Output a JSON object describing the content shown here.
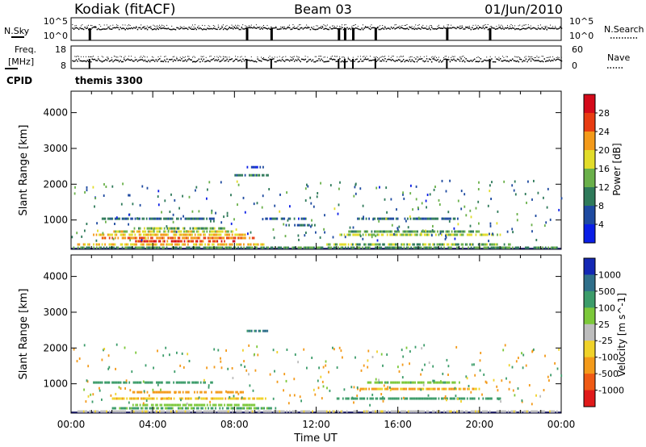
{
  "header": {
    "station": "Kodiak (fitACF)",
    "beam": "Beam 03",
    "date": "01/Jun/2010"
  },
  "top_panels": {
    "nsky_label": "N.Sky",
    "nsearch_label": "N.Search",
    "noise_ticks_left": [
      "10^5",
      "10^0"
    ],
    "noise_ticks_right": [
      "10^5",
      "10^0"
    ],
    "freq_label_1": "Freq.",
    "freq_label_2": "[MHz]",
    "freq_ticks": [
      "18",
      "8"
    ],
    "nave_label": "Nave",
    "nave_ticks": [
      "60",
      "0"
    ],
    "cpid_label": "CPID",
    "cpid_value": "themis 3300"
  },
  "chart_data": [
    {
      "type": "heatmap",
      "title": "",
      "ylabel": "Slant Range [km]",
      "xlabel": "",
      "xlim": [
        0,
        24
      ],
      "ylim": [
        180,
        4600
      ],
      "yticks": [
        "1000",
        "2000",
        "3000",
        "4000"
      ],
      "colorbar": {
        "label": "Power [dB]",
        "ticks": [
          "4",
          "8",
          "12",
          "16",
          "20",
          "24",
          "28"
        ],
        "colors": [
          "#0a1ee6",
          "#1e4aa0",
          "#2f7a5a",
          "#6ab04a",
          "#e2dc2a",
          "#f39a1a",
          "#e83c12",
          "#d40a1a"
        ]
      },
      "bands": [
        {
          "range_km": 225,
          "t0": 0.1,
          "t1": 23.8,
          "v": 12
        },
        {
          "range_km": 315,
          "t0": 0.3,
          "t1": 9.5,
          "v": 20
        },
        {
          "range_km": 315,
          "t0": 12.5,
          "t1": 21.5,
          "v": 14
        },
        {
          "range_km": 405,
          "t0": 3.0,
          "t1": 8.0,
          "v": 27
        },
        {
          "range_km": 495,
          "t0": 1.5,
          "t1": 9.0,
          "v": 24
        },
        {
          "range_km": 585,
          "t0": 1.0,
          "t1": 8.5,
          "v": 20
        },
        {
          "range_km": 675,
          "t0": 2.0,
          "t1": 8.0,
          "v": 18
        },
        {
          "range_km": 765,
          "t0": 3.0,
          "t1": 7.5,
          "v": 14
        },
        {
          "range_km": 585,
          "t0": 13.0,
          "t1": 21.0,
          "v": 16
        },
        {
          "range_km": 675,
          "t0": 13.5,
          "t1": 20.0,
          "v": 12
        },
        {
          "range_km": 855,
          "t0": 10.5,
          "t1": 12.0,
          "v": 8
        },
        {
          "range_km": 1035,
          "t0": 1.5,
          "t1": 7.0,
          "v": 8
        },
        {
          "range_km": 1035,
          "t0": 9.5,
          "t1": 11.5,
          "v": 6
        },
        {
          "range_km": 1035,
          "t0": 14.0,
          "t1": 19.0,
          "v": 8
        },
        {
          "range_km": 2475,
          "t0": 8.6,
          "t1": 9.4,
          "v": 6
        },
        {
          "range_km": 2250,
          "t0": 8.0,
          "t1": 9.8,
          "v": 10
        }
      ]
    },
    {
      "type": "heatmap",
      "title": "",
      "ylabel": "Slant Range [km]",
      "xlabel": "Time UT",
      "xlim": [
        0,
        24
      ],
      "ylim": [
        180,
        4600
      ],
      "xticks": [
        "00:00",
        "04:00",
        "08:00",
        "12:00",
        "16:00",
        "20:00",
        "00:00"
      ],
      "yticks": [
        "1000",
        "2000",
        "3000",
        "4000"
      ],
      "colorbar": {
        "label": "Velocity [m s^-1]",
        "ticks": [
          "1000",
          "500",
          "100",
          "25",
          "-25",
          "-100",
          "-500",
          "-1000"
        ],
        "colors": [
          "#1428b4",
          "#2f6f8a",
          "#3c9c6a",
          "#7cc83a",
          "#bdbdbd",
          "#f0d22a",
          "#f39a1a",
          "#ef5a14",
          "#e01a1a"
        ]
      },
      "bands": [
        {
          "range_km": 225,
          "t0": 0.1,
          "t1": 23.8,
          "v": -5
        },
        {
          "range_km": 315,
          "t0": 2.0,
          "t1": 10.0,
          "v": 120
        },
        {
          "range_km": 405,
          "t0": 3.0,
          "t1": 9.0,
          "v": 60
        },
        {
          "range_km": 585,
          "t0": 2.0,
          "t1": 9.5,
          "v": -80
        },
        {
          "range_km": 585,
          "t0": 13.0,
          "t1": 21.0,
          "v": 200
        },
        {
          "range_km": 765,
          "t0": 3.0,
          "t1": 8.5,
          "v": -200
        },
        {
          "range_km": 855,
          "t0": 14.0,
          "t1": 20.0,
          "v": -120
        },
        {
          "range_km": 1035,
          "t0": 1.0,
          "t1": 7.0,
          "v": 300
        },
        {
          "range_km": 1035,
          "t0": 14.5,
          "t1": 19.0,
          "v": 80
        },
        {
          "range_km": 2475,
          "t0": 8.6,
          "t1": 9.6,
          "v": 600
        }
      ]
    }
  ],
  "noise_gaps_hours": [
    0.9,
    8.6,
    9.8,
    13.1,
    13.4,
    13.8,
    14.9,
    18.4,
    20.5
  ]
}
